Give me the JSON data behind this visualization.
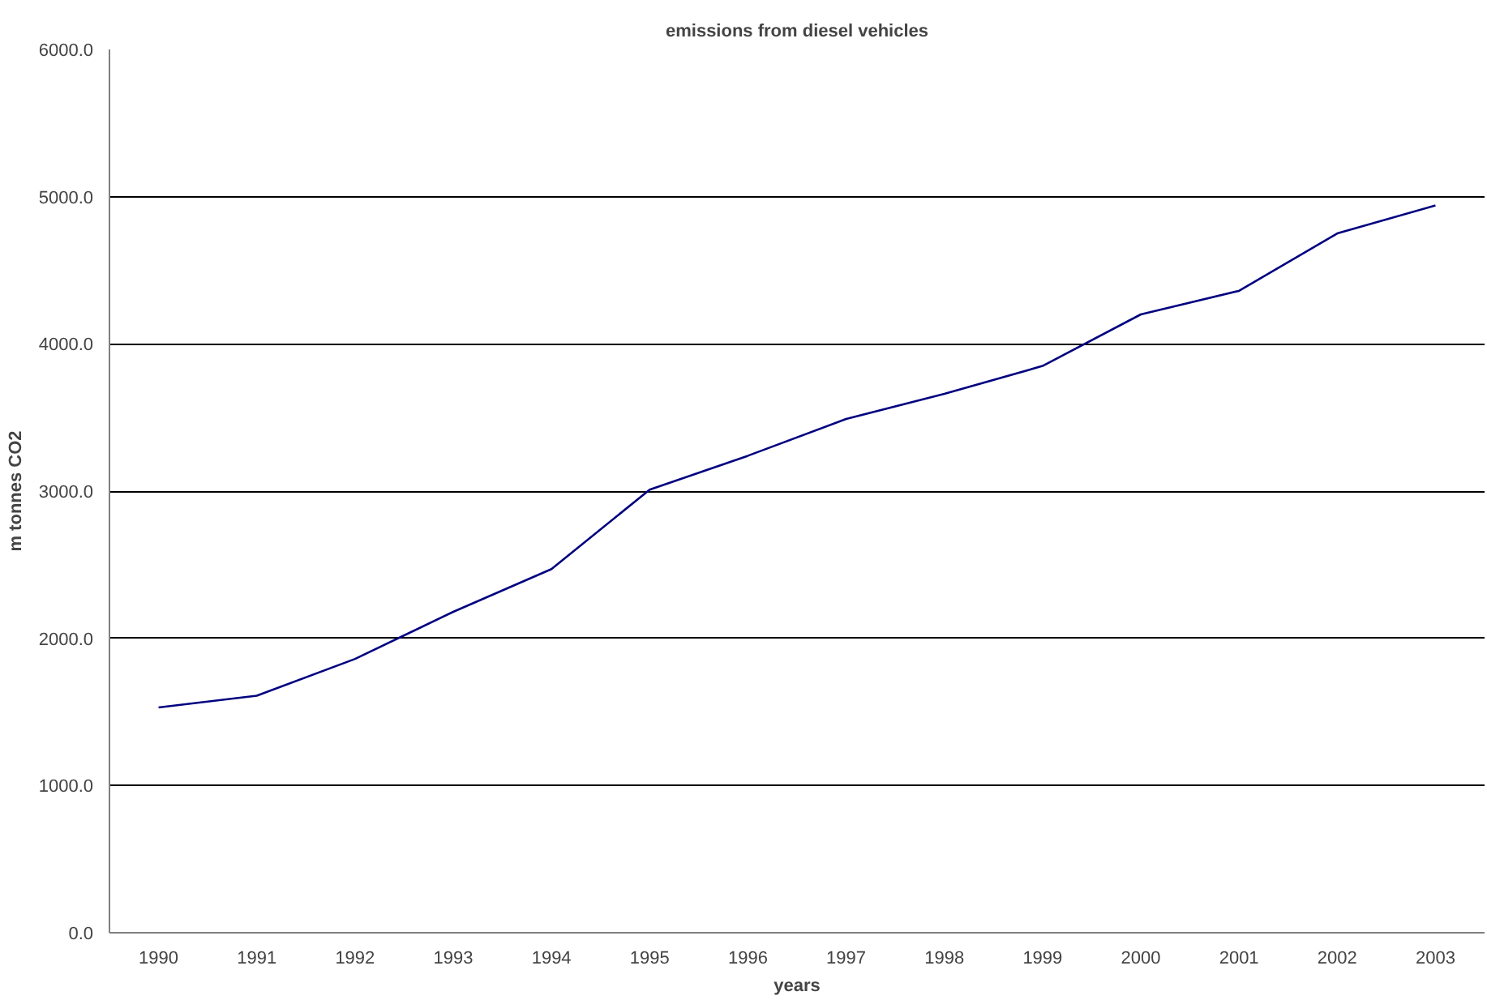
{
  "chart_data": {
    "type": "line",
    "title": "emissions from diesel vehicles",
    "xlabel": "years",
    "ylabel": "m tonnes CO2",
    "categories": [
      "1990",
      "1991",
      "1992",
      "1993",
      "1994",
      "1995",
      "1996",
      "1997",
      "1998",
      "1999",
      "2000",
      "2001",
      "2002",
      "2003"
    ],
    "series": [
      {
        "color": "#000080",
        "values": [
          1530,
          1610,
          1860,
          2180,
          2470,
          3010,
          3240,
          3490,
          3660,
          3850,
          4200,
          4360,
          4750,
          4940
        ]
      }
    ],
    "ylim": [
      0,
      6000
    ],
    "yticks": [
      {
        "value": 0,
        "label": "0.0"
      },
      {
        "value": 1000,
        "label": "1000.0"
      },
      {
        "value": 2000,
        "label": "2000.0"
      },
      {
        "value": 3000,
        "label": "3000.0"
      },
      {
        "value": 4000,
        "label": "4000.0"
      },
      {
        "value": 5000,
        "label": "5000.0"
      },
      {
        "value": 6000,
        "label": "6000.0"
      }
    ],
    "grid": "y",
    "marker": "none",
    "line_style": "solid"
  }
}
